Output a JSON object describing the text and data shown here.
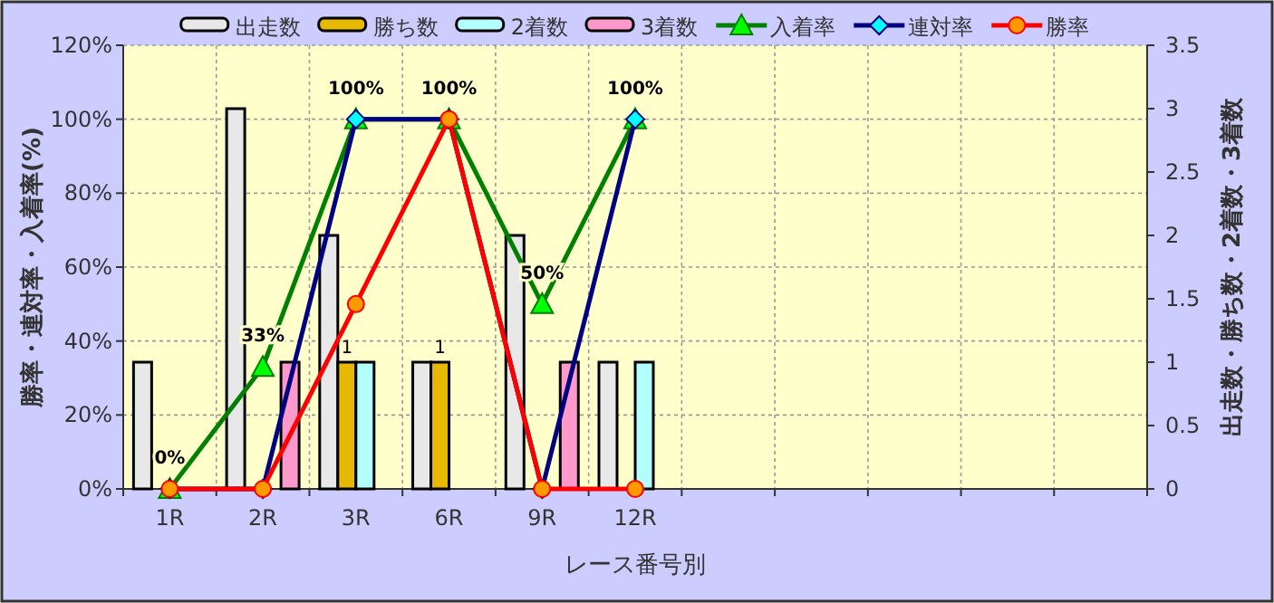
{
  "chart_data": {
    "type": "bar",
    "xlabel": "レース番号別",
    "ylabel": "勝率・連対率・入着率(%)",
    "y2label": "出走数・勝ち数・2着数・3着数",
    "categories": [
      "1R",
      "2R",
      "3R",
      "6R",
      "9R",
      "12R",
      null,
      null,
      null,
      null,
      null
    ],
    "ylim": [
      0,
      120
    ],
    "yticks": [
      {
        "value": 0,
        "label": "0%"
      },
      {
        "value": 20,
        "label": "20%"
      },
      {
        "value": 40,
        "label": "40%"
      },
      {
        "value": 60,
        "label": "60%"
      },
      {
        "value": 80,
        "label": "80%"
      },
      {
        "value": 100,
        "label": "100%"
      },
      {
        "value": 120,
        "label": "120%"
      }
    ],
    "y2lim": [
      0,
      3.5
    ],
    "y2ticks": [
      0,
      0.5,
      1,
      1.5,
      2,
      2.5,
      3,
      3.5
    ],
    "grid": true,
    "legend": "top",
    "series": [
      {
        "name": "出走数",
        "axis": "y2",
        "color": "#e8e8e8",
        "values": [
          1,
          3,
          2,
          1,
          2,
          1,
          null,
          null,
          null,
          null,
          null
        ]
      },
      {
        "name": "勝ち数",
        "axis": "y2",
        "color": "#e6b800",
        "values": [
          0,
          0,
          1,
          1,
          0,
          0,
          null,
          null,
          null,
          null,
          null
        ],
        "value_labels": [
          null,
          null,
          "1",
          "1",
          null,
          null,
          null,
          null,
          null,
          null,
          null
        ]
      },
      {
        "name": "2着数",
        "axis": "y2",
        "color": "#b3ffff",
        "values": [
          0,
          0,
          1,
          0,
          0,
          1,
          null,
          null,
          null,
          null,
          null
        ]
      },
      {
        "name": "3着数",
        "axis": "y2",
        "color": "#ff99cc",
        "values": [
          0,
          1,
          0,
          0,
          1,
          0,
          null,
          null,
          null,
          null,
          null
        ]
      },
      {
        "name": "入着率",
        "type": "line",
        "marker": "triangle",
        "color": "#008000",
        "colors": [
          "#00ff00",
          "#00ff00",
          "#00ff00",
          "#00ff00",
          "#00ff00",
          "#00ff00",
          null,
          null,
          null,
          null,
          null
        ],
        "values": [
          0,
          33,
          100,
          100,
          50,
          100,
          null,
          null,
          null,
          null,
          null
        ],
        "value_labels": [
          "0%",
          "33%",
          "100%",
          "100%",
          "50%",
          "100%",
          null,
          null,
          null,
          null,
          null
        ]
      },
      {
        "name": "連対率",
        "type": "line",
        "marker": "diamond",
        "color": "#000080",
        "colors": [
          "#00ffff",
          "#00ffff",
          "#00ffff",
          "#00ffff",
          "#00ffff",
          "#00ffff",
          null,
          null,
          null,
          null,
          null
        ],
        "values": [
          0,
          0,
          100,
          100,
          0,
          100,
          null,
          null,
          null,
          null,
          null
        ]
      },
      {
        "name": "勝率",
        "type": "line",
        "marker": "circle",
        "color": "#ff0000",
        "colors": [
          "#ff9900",
          "#ff9900",
          "#ff9900",
          "#ff9900",
          "#ff9900",
          "#ff9900",
          null,
          null,
          null,
          null,
          null
        ],
        "values": [
          0,
          0,
          50,
          100,
          0,
          0,
          null,
          null,
          null,
          null,
          null
        ]
      }
    ]
  }
}
